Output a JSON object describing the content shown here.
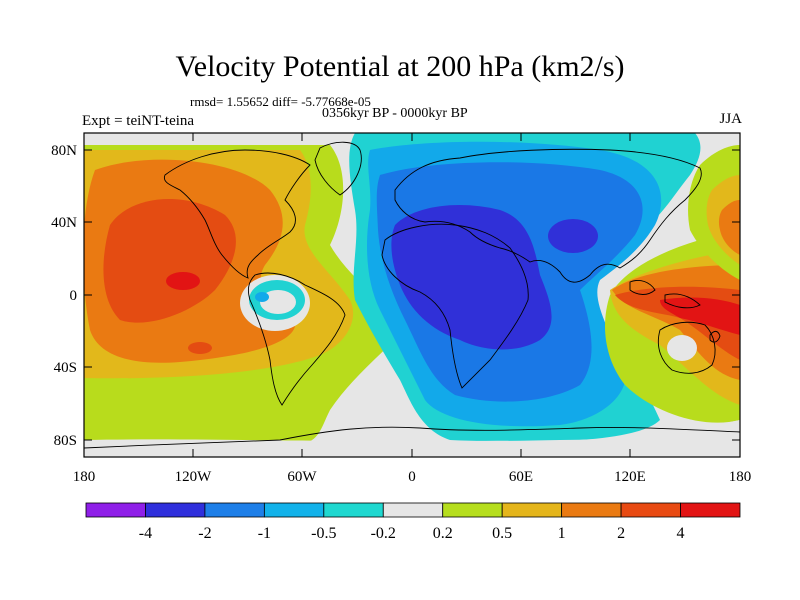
{
  "title": "Velocity Potential at 200 hPa (km2/s)",
  "stats": "rmsd= 1.55652 diff= -5.77668e-05",
  "left_label": "Expt = teiNT-teina",
  "center_label": "0356kyr BP - 0000kyr BP",
  "right_label": "JJA",
  "y_ticks": [
    "80N",
    "40N",
    "0",
    "40S",
    "80S"
  ],
  "x_ticks": [
    "180",
    "120W",
    "60W",
    "0",
    "60E",
    "120E",
    "180"
  ],
  "colorbar": {
    "labels": [
      "-4",
      "-2",
      "-1",
      "-0.5",
      "-0.2",
      "0.2",
      "0.5",
      "1",
      "2",
      "4"
    ],
    "colors": [
      "#8f1fe8",
      "#2f2fdc",
      "#1e7fe8",
      "#12b2ea",
      "#1fd8d0",
      "#e6e6e6",
      "#b6de1e",
      "#e4b51b",
      "#ea7a12",
      "#e84a12",
      "#e21414"
    ]
  },
  "field_colors": {
    "neg4": "#3030d8",
    "neg2": "#1a78e6",
    "neg1": "#12a9ea",
    "neg05": "#20d2d2",
    "zero": "#e6e6e6",
    "pos02": "#b8dc1c",
    "pos05": "#e2b81b",
    "pos1": "#ea7a12",
    "pos2": "#e44c12",
    "pos4": "#e21414"
  }
}
